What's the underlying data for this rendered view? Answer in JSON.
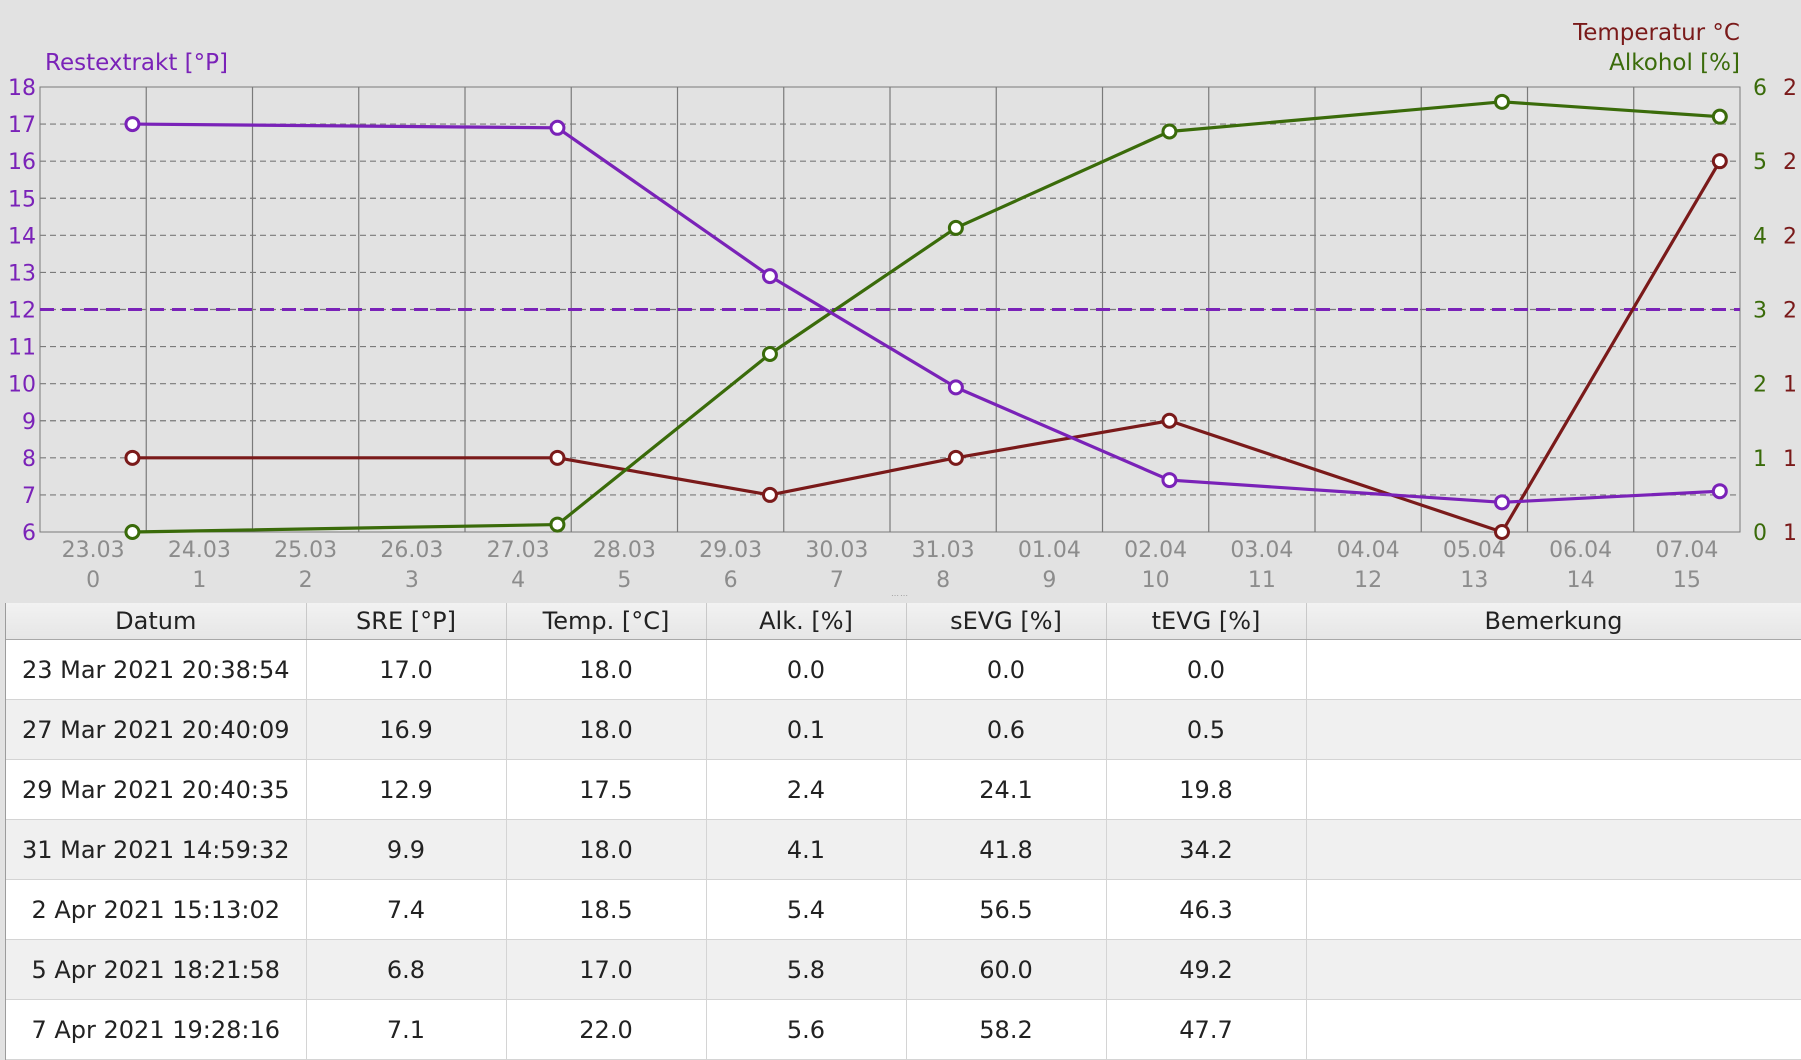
{
  "chart_data": {
    "type": "line",
    "left_axis_title": "Restextrakt [°P]",
    "right_axis_title_1": "Temperatur °C",
    "right_axis_title_2": "Alkohol [%]",
    "left_axis": {
      "range": [
        6,
        18
      ],
      "ticks": [
        18,
        17,
        16,
        15,
        14,
        13,
        12,
        11,
        10,
        9,
        8,
        7,
        6
      ]
    },
    "alcohol_axis": {
      "range": [
        0,
        6
      ],
      "ticks": [
        "6",
        "5",
        "4",
        "3",
        "2",
        "1",
        "0"
      ]
    },
    "temperature_axis": {
      "range": [
        17,
        23
      ],
      "ticks": [
        "2",
        "2",
        "2",
        "2",
        "1",
        "1",
        "1"
      ]
    },
    "x_date_labels": [
      "23.03",
      "24.03",
      "25.03",
      "26.03",
      "27.03",
      "28.03",
      "29.03",
      "30.03",
      "31.03",
      "01.04",
      "02.04",
      "03.04",
      "04.04",
      "05.04",
      "06.04",
      "07.04"
    ],
    "x_day_labels": [
      "0",
      "1",
      "2",
      "3",
      "4",
      "5",
      "6",
      "7",
      "8",
      "9",
      "10",
      "11",
      "12",
      "13",
      "14",
      "15"
    ],
    "x": [
      0.37,
      4.37,
      6.37,
      8.12,
      10.13,
      13.26,
      15.31
    ],
    "reference_line": {
      "axis": "left",
      "value": 12,
      "style": "dashed"
    },
    "grid": true,
    "series": [
      {
        "name": "Restextrakt [°P]",
        "axis": "left",
        "color": "#7a22b8",
        "values": [
          17.0,
          16.9,
          12.9,
          9.9,
          7.4,
          6.8,
          7.1
        ]
      },
      {
        "name": "Alkohol [%]",
        "axis": "alcohol",
        "color": "#3a6b0a",
        "values": [
          0.0,
          0.1,
          2.4,
          4.1,
          5.4,
          5.8,
          5.6
        ]
      },
      {
        "name": "Temperatur °C",
        "axis": "temperature",
        "color": "#7a1a1a",
        "values": [
          18.0,
          18.0,
          17.5,
          18.0,
          18.5,
          17.0,
          22.0
        ]
      }
    ]
  },
  "colors": {
    "extract": "#7a22b8",
    "alcohol": "#3a6b0a",
    "temperature": "#7a1a1a",
    "axis_text": "#8c8c8c"
  },
  "table": {
    "columns": [
      "Datum",
      "SRE [°P]",
      "Temp. [°C]",
      "Alk. [%]",
      "sEVG [%]",
      "tEVG [%]",
      "Bemerkung"
    ],
    "rows": [
      [
        "23 Mar 2021 20:38:54",
        "17.0",
        "18.0",
        "0.0",
        "0.0",
        "0.0",
        ""
      ],
      [
        "27 Mar 2021 20:40:09",
        "16.9",
        "18.0",
        "0.1",
        "0.6",
        "0.5",
        ""
      ],
      [
        "29 Mar 2021 20:40:35",
        "12.9",
        "17.5",
        "2.4",
        "24.1",
        "19.8",
        ""
      ],
      [
        "31 Mar 2021 14:59:32",
        "9.9",
        "18.0",
        "4.1",
        "41.8",
        "34.2",
        ""
      ],
      [
        "2 Apr 2021 15:13:02",
        "7.4",
        "18.5",
        "5.4",
        "56.5",
        "46.3",
        ""
      ],
      [
        "5 Apr 2021 18:21:58",
        "6.8",
        "17.0",
        "5.8",
        "60.0",
        "49.2",
        ""
      ],
      [
        "7 Apr 2021 19:28:16",
        "7.1",
        "22.0",
        "5.6",
        "58.2",
        "47.7",
        ""
      ]
    ]
  }
}
